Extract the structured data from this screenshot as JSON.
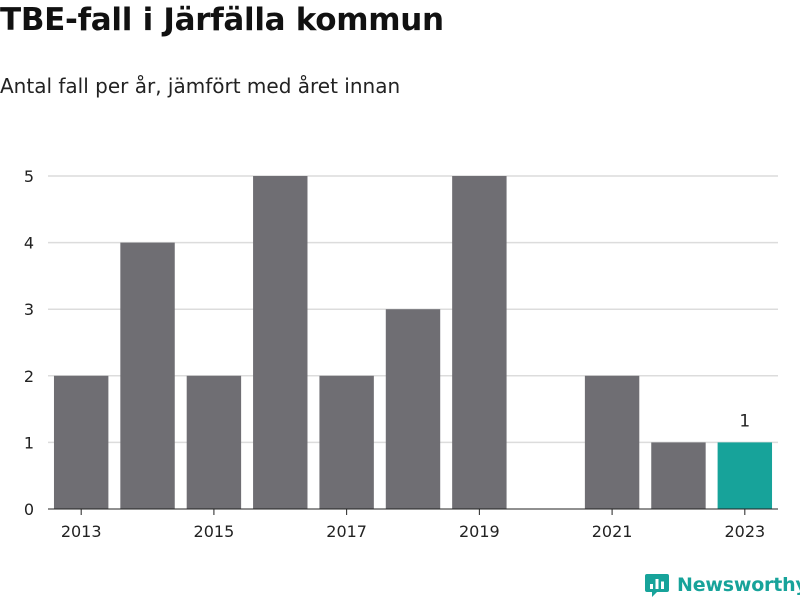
{
  "title": "TBE-fall i Järfälla kommun",
  "subtitle": "Antal fall per år, jämfört med året innan",
  "brand": {
    "name": "Newsworthy",
    "icon": "newsworthy-logo-icon"
  },
  "colors": {
    "bar": "#6f6e73",
    "highlight": "#17a39a",
    "grid": "#dcdcdc",
    "axis": "#222222"
  },
  "chart_data": {
    "type": "bar",
    "title": "TBE-fall i Järfälla kommun",
    "subtitle": "Antal fall per år, jämfört med året innan",
    "categories": [
      2013,
      2014,
      2015,
      2016,
      2017,
      2018,
      2019,
      2020,
      2021,
      2022,
      2023
    ],
    "values": [
      2,
      4,
      2,
      5,
      2,
      3,
      5,
      0,
      2,
      1,
      1
    ],
    "highlight_category": 2023,
    "data_labels": [
      {
        "category": 2023,
        "text": "1"
      }
    ],
    "x_tick_labels": [
      "2013",
      "2015",
      "2017",
      "2019",
      "2021",
      "2023"
    ],
    "y_ticks": [
      0,
      1,
      2,
      3,
      4,
      5
    ],
    "ylim": [
      0,
      5
    ],
    "xlabel": "",
    "ylabel": "",
    "grid": true,
    "legend": false
  }
}
